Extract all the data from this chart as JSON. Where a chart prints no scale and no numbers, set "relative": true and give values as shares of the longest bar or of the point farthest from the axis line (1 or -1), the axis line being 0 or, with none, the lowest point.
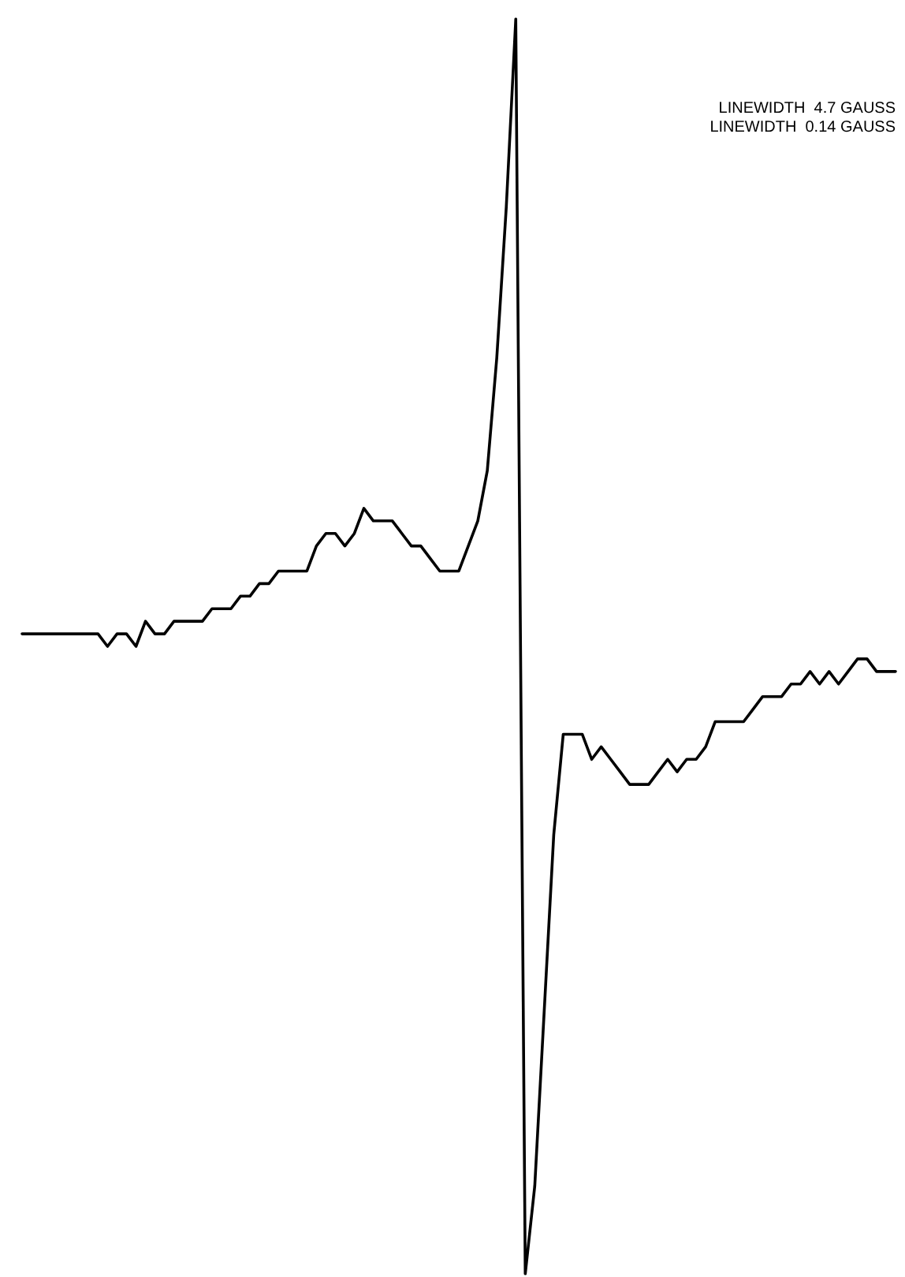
{
  "chart_data": {
    "type": "line",
    "relative": true,
    "marker": "none",
    "line_style": "solid",
    "annotations": [
      "LINEWIDTH  4.7 GAUSS",
      "LINEWIDTH  0.14 GAUSS"
    ],
    "categories": [
      null,
      null,
      null,
      null,
      null,
      null,
      null,
      null,
      null,
      null,
      null,
      null,
      null,
      null,
      null,
      null,
      null,
      null,
      null,
      null,
      null,
      null,
      null,
      null,
      null,
      null,
      null,
      null,
      null,
      null,
      null,
      null,
      null,
      null,
      null,
      null,
      null,
      null,
      null,
      null,
      null,
      null,
      null,
      null,
      null,
      null,
      null,
      null,
      null,
      null,
      null,
      null,
      null,
      null,
      null,
      null,
      null,
      null,
      null,
      null,
      null,
      null,
      null,
      null,
      null,
      null,
      null,
      null,
      null,
      null,
      null,
      null,
      null,
      null,
      null,
      null,
      null,
      null,
      null,
      null,
      null,
      null,
      null,
      null,
      null,
      null,
      null,
      null,
      null,
      null,
      null,
      null,
      null
    ],
    "series": [
      {
        "color": "#000000",
        "values": [
          0.51,
          0.51,
          0.51,
          0.51,
          0.51,
          0.51,
          0.51,
          0.51,
          0.51,
          0.5,
          0.51,
          0.51,
          0.5,
          0.52,
          0.51,
          0.51,
          0.52,
          0.52,
          0.52,
          0.52,
          0.53,
          0.53,
          0.53,
          0.54,
          0.54,
          0.55,
          0.55,
          0.56,
          0.56,
          0.56,
          0.56,
          0.58,
          0.59,
          0.59,
          0.58,
          0.59,
          0.61,
          0.6,
          0.6,
          0.6,
          0.59,
          0.58,
          0.58,
          0.57,
          0.56,
          0.56,
          0.56,
          0.58,
          0.6,
          0.64,
          0.73,
          0.85,
          1,
          0,
          0.07,
          0.21,
          0.35,
          0.43,
          0.43,
          0.43,
          0.41,
          0.42,
          0.41,
          0.4,
          0.39,
          0.39,
          0.39,
          0.4,
          0.41,
          0.4,
          0.41,
          0.41,
          0.42,
          0.44,
          0.44,
          0.44,
          0.44,
          0.45,
          0.46,
          0.46,
          0.46,
          0.47,
          0.47,
          0.48,
          0.47,
          0.48,
          0.47,
          0.48,
          0.49,
          0.49,
          0.48,
          0.48,
          0.48
        ]
      }
    ]
  }
}
